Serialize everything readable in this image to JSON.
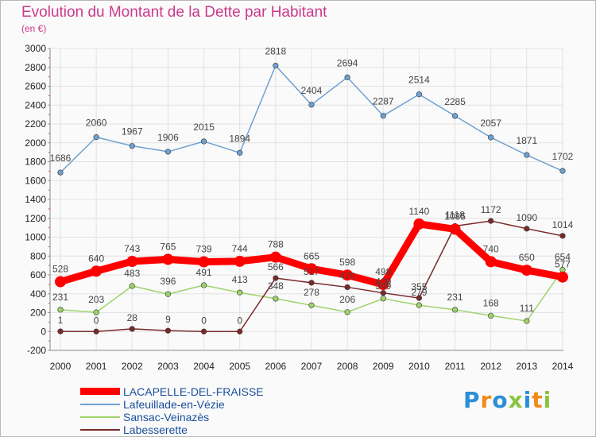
{
  "title": "Evolution du Montant de la Dette par Habitant",
  "subtitle": "(en €)",
  "logo": {
    "text": "Proxiti",
    "colors": [
      "#2a8fd6",
      "#f28a1a",
      "#2a8fd6",
      "#8ac43f",
      "#2a8fd6",
      "#f28a1a",
      "#8ac43f"
    ]
  },
  "chart_data": {
    "type": "line",
    "title": "Evolution du Montant de la Dette par Habitant",
    "ylabel": "(en €)",
    "xlabel": "",
    "x": [
      "2000",
      "2001",
      "2002",
      "2003",
      "2004",
      "2005",
      "2006",
      "2007",
      "2008",
      "2009",
      "2010",
      "2011",
      "2012",
      "2013",
      "2014"
    ],
    "ylim": [
      -200,
      3000
    ],
    "yticks": [
      "-200",
      "0",
      "200",
      "400",
      "600",
      "800",
      "1000",
      "1200",
      "1400",
      "1600",
      "1800",
      "2000",
      "2200",
      "2400",
      "2600",
      "2800",
      "3000"
    ],
    "grid": true,
    "legend_position": "bottom-left",
    "series": [
      {
        "name": "LACAPELLE-DEL-FRAISSE",
        "color": "#ff0000",
        "values": [
          528,
          640,
          743,
          765,
          739,
          744,
          788,
          665,
          598,
          498,
          1140,
          1085,
          740,
          650,
          577
        ],
        "labels": [
          "528",
          "640",
          "743",
          "765",
          "739",
          "744",
          "788",
          "665",
          "598",
          "498",
          "1140",
          "1085",
          "740",
          "650",
          "577"
        ]
      },
      {
        "name": "Lafeuillade-en-Vézie",
        "color": "#6ea1d2",
        "values": [
          1686,
          2060,
          1967,
          1906,
          2015,
          1894,
          2818,
          2404,
          2694,
          2287,
          2514,
          2285,
          2057,
          1871,
          1702
        ],
        "labels": [
          "1686",
          "2060",
          "1967",
          "1906",
          "2015",
          "1894",
          "2818",
          "2404",
          "2694",
          "2287",
          "2514",
          "2285",
          "2057",
          "1871",
          "1702"
        ]
      },
      {
        "name": "Sansac-Veinazès",
        "color": "#9ed36a",
        "values": [
          231,
          203,
          483,
          396,
          491,
          413,
          348,
          278,
          206,
          349,
          279,
          231,
          168,
          111,
          654
        ],
        "labels": [
          "231",
          "203",
          "483",
          "396",
          "491",
          "413",
          "348",
          "278",
          "206",
          "349",
          "279",
          "231",
          "168",
          "111",
          "654"
        ]
      },
      {
        "name": "Labesserette",
        "color": "#7a2a2a",
        "values": [
          1,
          0,
          28,
          9,
          0,
          0,
          566,
          517,
          470,
          409,
          355,
          1118,
          1172,
          1090,
          1014
        ],
        "labels": [
          "1",
          "0",
          "28",
          "9",
          "0",
          "0",
          "566",
          "517",
          "470",
          "409",
          "355",
          "1118",
          "1172",
          "1090",
          "1014"
        ]
      }
    ]
  }
}
